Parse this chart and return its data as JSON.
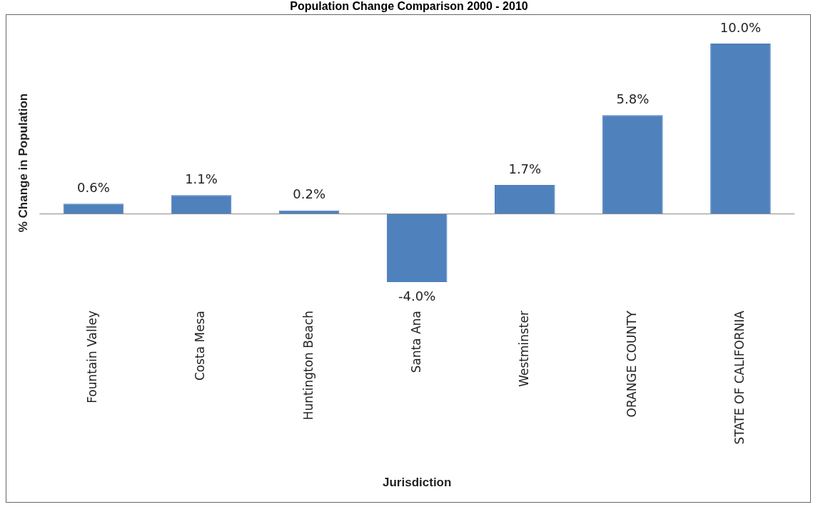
{
  "chart_data": {
    "type": "bar",
    "title": "Population Change Comparison 2000 - 2010",
    "xlabel": "Jurisdiction",
    "ylabel": "% Change in Population",
    "categories": [
      "Fountain Valley",
      "Costa Mesa",
      "Huntington Beach",
      "Santa Ana",
      "Westminster",
      "ORANGE COUNTY",
      "STATE OF CALIFORNIA"
    ],
    "values": [
      0.6,
      1.1,
      0.2,
      -4.0,
      1.7,
      5.8,
      10.0
    ],
    "value_labels": [
      "0.6%",
      "1.1%",
      "0.2%",
      "-4.0%",
      "1.7%",
      "5.8%",
      "10.0%"
    ],
    "color": "#4f81bd",
    "grid": false,
    "legend": false,
    "tick_labels": "x"
  }
}
